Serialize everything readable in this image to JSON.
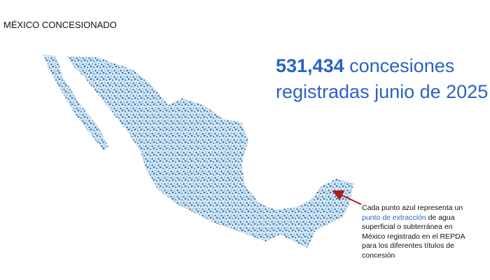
{
  "header": {
    "title": "MÉXICO CONCESIONADO"
  },
  "headline": {
    "count": "531,434",
    "text_1": "concesiones",
    "text_2": "registradas junio de 2025"
  },
  "note": {
    "line_1": "Cada punto azul representa un",
    "link": "punto de extracción",
    "line_2_rest": "de agua",
    "line_3": "superficial o subterránea en",
    "line_4": "México registrado en el REPDA",
    "line_5": "para los diferentes títulos de",
    "line_6": "concesión"
  }
}
